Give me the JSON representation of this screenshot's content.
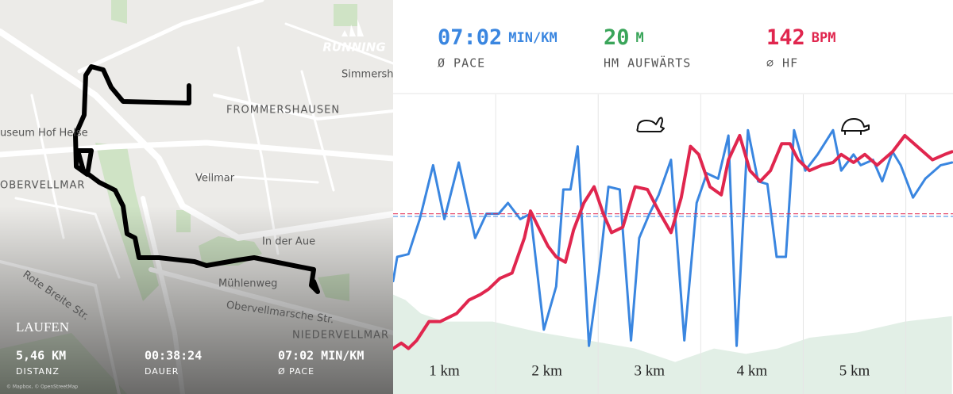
{
  "map": {
    "brand": "RUNNING",
    "labels": [
      "Simmershau",
      "FROMMERSHAUSEN",
      "useum Hof Helse",
      "Vellmar",
      "OBERVELLMAR",
      "In der Aue",
      "Mühlenweg",
      "Obervellmarsche Str.",
      "Rote Breite Str.",
      "NIEDERVELLMAR"
    ],
    "activity": "LAUFEN",
    "stats": [
      {
        "value": "5,46 KM",
        "label": "DISTANZ"
      },
      {
        "value": "00:38:24",
        "label": "DAUER"
      },
      {
        "value": "07:02 MIN/KM",
        "label": "Ø PACE"
      }
    ],
    "attribution": "© Mapbox, © OpenStreetMap"
  },
  "header": {
    "stats": [
      {
        "value": "07:02",
        "unit": "MIN/KM",
        "label": "Ø PACE",
        "color": "#3a86e0"
      },
      {
        "value": "20",
        "unit": "M",
        "label": "HM AUFWÄRTS",
        "color": "#3aa55a"
      },
      {
        "value": "142",
        "unit": "BPM",
        "label": "⌀ HF",
        "color": "#e0264e"
      }
    ]
  },
  "chart_data": {
    "type": "line",
    "xlim": [
      0,
      5.46
    ],
    "ylim": [
      0,
      100
    ],
    "xticks": [
      1,
      2,
      3,
      4,
      5
    ],
    "km_labels": [
      "1 km",
      "2 km",
      "3 km",
      "4 km",
      "5 km"
    ],
    "elevation": {
      "color": "#e2efe6",
      "x": [
        0,
        0.12,
        0.27,
        0.5,
        0.97,
        1.43,
        1.9,
        2.36,
        2.75,
        3.13,
        3.44,
        3.75,
        4.06,
        4.53,
        4.99,
        5.45
      ],
      "values": [
        26,
        24,
        19,
        16,
        16,
        12,
        9,
        6,
        1,
        6,
        4,
        6,
        10,
        12,
        16,
        18
      ]
    },
    "series": [
      {
        "name": "Ø PACE",
        "color": "#3a86e0",
        "average": 55,
        "x": [
          0,
          0.04,
          0.15,
          0.26,
          0.39,
          0.5,
          0.64,
          0.8,
          0.91,
          1.03,
          1.12,
          1.24,
          1.34,
          1.47,
          1.59,
          1.66,
          1.73,
          1.8,
          1.91,
          2.01,
          2.1,
          2.21,
          2.32,
          2.4,
          2.5,
          2.59,
          2.71,
          2.84,
          2.96,
          3.06,
          3.17,
          3.27,
          3.35,
          3.46,
          3.56,
          3.65,
          3.74,
          3.83,
          3.91,
          4.02,
          4.14,
          4.29,
          4.37,
          4.49,
          4.56,
          4.68,
          4.77,
          4.87,
          4.95,
          5.07,
          5.19,
          5.34,
          5.45
        ],
        "values": [
          31,
          40,
          41,
          54,
          74,
          54,
          75,
          47,
          56,
          56,
          60,
          54,
          56,
          13,
          29,
          65,
          65,
          81,
          7,
          35,
          66,
          65,
          9,
          47,
          56,
          63,
          76,
          9,
          60,
          71,
          69,
          85,
          7,
          87,
          68,
          67,
          40,
          40,
          87,
          72,
          78,
          87,
          72,
          78,
          74,
          76,
          68,
          79,
          74,
          62,
          69,
          74,
          75
        ]
      },
      {
        "name": "⌀ HF",
        "color": "#e0264e",
        "average": 56,
        "x": [
          0,
          0.08,
          0.15,
          0.23,
          0.35,
          0.46,
          0.62,
          0.74,
          0.85,
          0.93,
          1.04,
          1.16,
          1.28,
          1.34,
          1.43,
          1.51,
          1.59,
          1.68,
          1.76,
          1.86,
          1.96,
          2.05,
          2.13,
          2.24,
          2.36,
          2.48,
          2.59,
          2.71,
          2.81,
          2.9,
          2.98,
          3.09,
          3.2,
          3.27,
          3.38,
          3.48,
          3.58,
          3.68,
          3.79,
          3.87,
          3.95,
          4.06,
          4.18,
          4.29,
          4.37,
          4.49,
          4.6,
          4.72,
          4.87,
          4.99,
          5.11,
          5.26,
          5.38,
          5.45
        ],
        "values": [
          6,
          8,
          6,
          9,
          16,
          16,
          19,
          24,
          26,
          28,
          32,
          34,
          47,
          57,
          50,
          44,
          40,
          38,
          50,
          60,
          66,
          56,
          49,
          51,
          66,
          65,
          57,
          49,
          62,
          81,
          78,
          66,
          63,
          76,
          85,
          72,
          68,
          72,
          82,
          82,
          76,
          72,
          74,
          75,
          78,
          75,
          78,
          74,
          79,
          85,
          81,
          76,
          78,
          79
        ]
      }
    ]
  }
}
